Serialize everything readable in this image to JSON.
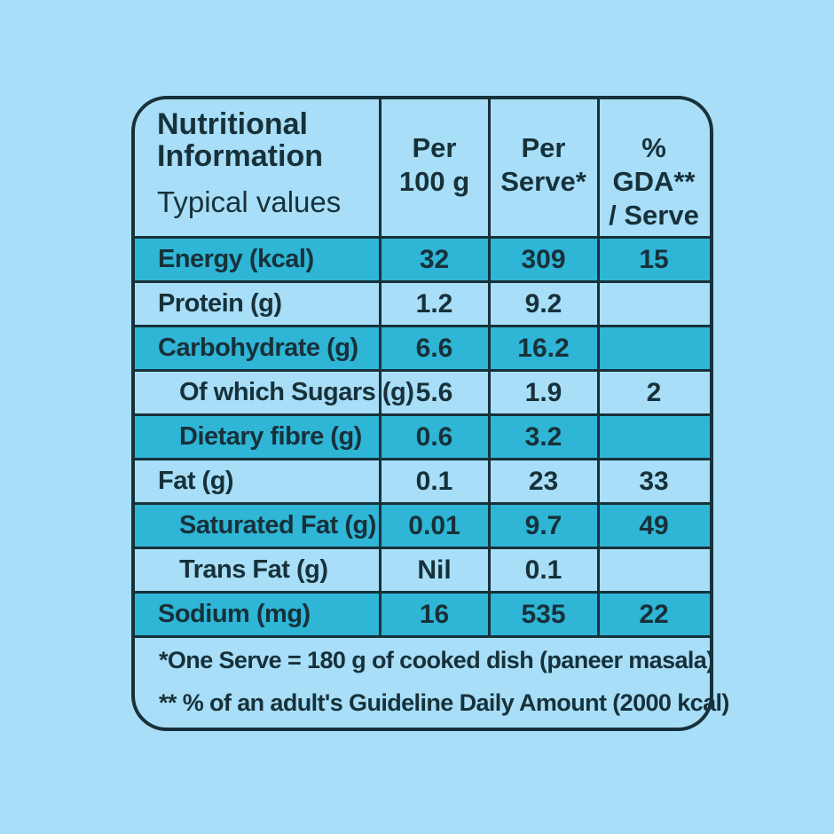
{
  "header": {
    "title_line1": "Nutritional",
    "title_line2": "Information",
    "subtitle": "Typical values",
    "col1_line1": "Per",
    "col1_line2": "100 g",
    "col2_line1": "Per",
    "col2_line2": "Serve*",
    "col3_line1": "% GDA**",
    "col3_line2": "/ Serve"
  },
  "rows": [
    {
      "label": "Energy (kcal)",
      "per100": "32",
      "perServe": "309",
      "gda": "15"
    },
    {
      "label": "Protein (g)",
      "per100": "1.2",
      "perServe": "9.2",
      "gda": ""
    },
    {
      "label": "Carbohydrate (g)",
      "per100": "6.6",
      "perServe": "16.2",
      "gda": ""
    },
    {
      "label": "Of which Sugars (g)",
      "per100": "5.6",
      "perServe": "1.9",
      "gda": "2"
    },
    {
      "label": "Dietary fibre (g)",
      "per100": "0.6",
      "perServe": "3.2",
      "gda": ""
    },
    {
      "label": "Fat (g)",
      "per100": "0.1",
      "perServe": "23",
      "gda": "33"
    },
    {
      "label": "Saturated Fat (g)",
      "per100": "0.01",
      "perServe": "9.7",
      "gda": "49"
    },
    {
      "label": "Trans Fat (g)",
      "per100": "Nil",
      "perServe": "0.1",
      "gda": ""
    },
    {
      "label": "Sodium (mg)",
      "per100": "16",
      "perServe": "535",
      "gda": "22"
    }
  ],
  "footnotes": {
    "serve": "*One Serve = 180 g of cooked dish (paneer masala)",
    "gda": "** % of an adult's Guideline Daily Amount (2000 kcal)"
  },
  "colors": {
    "background": "#a8def7",
    "shaded_row": "#2fb5d5",
    "ink": "#17313a"
  }
}
